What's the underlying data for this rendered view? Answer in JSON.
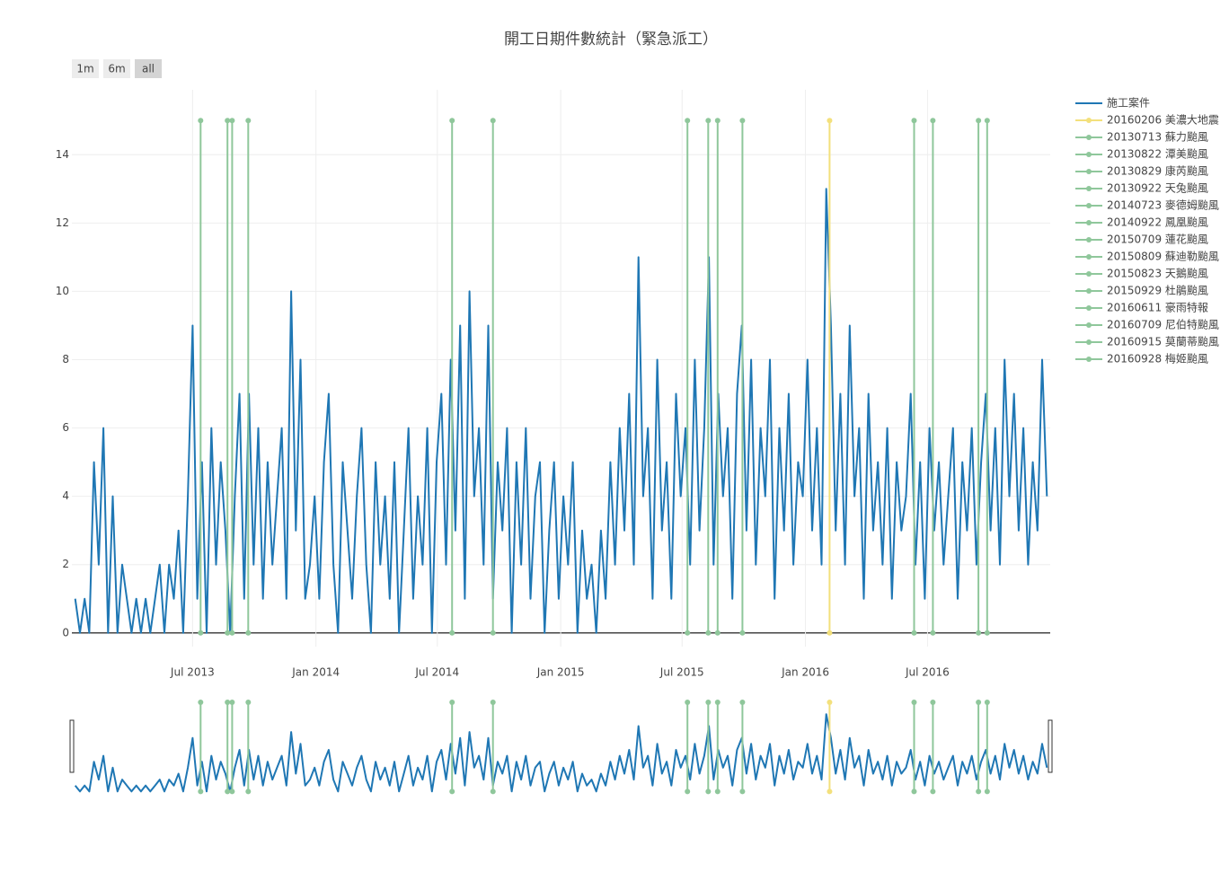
{
  "chart_data": {
    "type": "line",
    "title": "開工日期件數統計（緊急派工）",
    "range_buttons": [
      "1m",
      "6m",
      "all"
    ],
    "active_button": "all",
    "range_slider": true,
    "grid": true,
    "xlim": [
      "2013-01-02",
      "2016-12-31"
    ],
    "xticks": [
      {
        "value": "2013-07-01",
        "label": "Jul 2013"
      },
      {
        "value": "2014-01-01",
        "label": "Jan 2014"
      },
      {
        "value": "2014-07-01",
        "label": "Jul 2014"
      },
      {
        "value": "2015-01-01",
        "label": "Jan 2015"
      },
      {
        "value": "2015-07-01",
        "label": "Jul 2015"
      },
      {
        "value": "2016-01-01",
        "label": "Jan 2016"
      },
      {
        "value": "2016-07-01",
        "label": "Jul 2016"
      }
    ],
    "ylim": [
      -0.4,
      15.9
    ],
    "yticks": [
      0,
      2,
      4,
      6,
      8,
      10,
      12,
      14
    ],
    "series": [
      {
        "name": "施工案件",
        "color": "#1f77b4",
        "markers": false,
        "x": [
          "2013-01-07",
          "2013-01-14",
          "2013-01-21",
          "2013-01-28",
          "2013-02-04",
          "2013-02-11",
          "2013-02-18",
          "2013-02-25",
          "2013-03-04",
          "2013-03-11",
          "2013-03-18",
          "2013-03-25",
          "2013-04-01",
          "2013-04-08",
          "2013-04-15",
          "2013-04-22",
          "2013-04-29",
          "2013-05-06",
          "2013-05-13",
          "2013-05-20",
          "2013-05-27",
          "2013-06-03",
          "2013-06-10",
          "2013-06-17",
          "2013-06-24",
          "2013-07-01",
          "2013-07-08",
          "2013-07-15",
          "2013-07-22",
          "2013-07-29",
          "2013-08-05",
          "2013-08-12",
          "2013-08-19",
          "2013-08-26",
          "2013-09-02",
          "2013-09-09",
          "2013-09-16",
          "2013-09-23",
          "2013-09-30",
          "2013-10-07",
          "2013-10-14",
          "2013-10-21",
          "2013-10-28",
          "2013-11-04",
          "2013-11-11",
          "2013-11-18",
          "2013-11-25",
          "2013-12-02",
          "2013-12-09",
          "2013-12-16",
          "2013-12-23",
          "2013-12-30",
          "2014-01-06",
          "2014-01-13",
          "2014-01-20",
          "2014-01-27",
          "2014-02-03",
          "2014-02-10",
          "2014-02-17",
          "2014-02-24",
          "2014-03-03",
          "2014-03-10",
          "2014-03-17",
          "2014-03-24",
          "2014-03-31",
          "2014-04-07",
          "2014-04-14",
          "2014-04-21",
          "2014-04-28",
          "2014-05-05",
          "2014-05-12",
          "2014-05-19",
          "2014-05-26",
          "2014-06-02",
          "2014-06-09",
          "2014-06-16",
          "2014-06-23",
          "2014-06-30",
          "2014-07-07",
          "2014-07-14",
          "2014-07-21",
          "2014-07-28",
          "2014-08-04",
          "2014-08-11",
          "2014-08-18",
          "2014-08-25",
          "2014-09-01",
          "2014-09-08",
          "2014-09-15",
          "2014-09-22",
          "2014-09-29",
          "2014-10-06",
          "2014-10-13",
          "2014-10-20",
          "2014-10-27",
          "2014-11-03",
          "2014-11-10",
          "2014-11-17",
          "2014-11-24",
          "2014-12-01",
          "2014-12-08",
          "2014-12-15",
          "2014-12-22",
          "2014-12-29",
          "2015-01-05",
          "2015-01-12",
          "2015-01-19",
          "2015-01-26",
          "2015-02-02",
          "2015-02-09",
          "2015-02-16",
          "2015-02-23",
          "2015-03-02",
          "2015-03-09",
          "2015-03-16",
          "2015-03-23",
          "2015-03-30",
          "2015-04-06",
          "2015-04-13",
          "2015-04-20",
          "2015-04-27",
          "2015-05-04",
          "2015-05-11",
          "2015-05-18",
          "2015-05-25",
          "2015-06-01",
          "2015-06-08",
          "2015-06-15",
          "2015-06-22",
          "2015-06-29",
          "2015-07-06",
          "2015-07-13",
          "2015-07-20",
          "2015-07-27",
          "2015-08-03",
          "2015-08-10",
          "2015-08-17",
          "2015-08-24",
          "2015-08-31",
          "2015-09-07",
          "2015-09-14",
          "2015-09-21",
          "2015-09-28",
          "2015-10-05",
          "2015-10-12",
          "2015-10-19",
          "2015-10-26",
          "2015-11-02",
          "2015-11-09",
          "2015-11-16",
          "2015-11-23",
          "2015-11-30",
          "2015-12-07",
          "2015-12-14",
          "2015-12-21",
          "2015-12-28",
          "2016-01-04",
          "2016-01-11",
          "2016-01-18",
          "2016-01-25",
          "2016-02-01",
          "2016-02-08",
          "2016-02-15",
          "2016-02-22",
          "2016-02-29",
          "2016-03-07",
          "2016-03-14",
          "2016-03-21",
          "2016-03-28",
          "2016-04-04",
          "2016-04-11",
          "2016-04-18",
          "2016-04-25",
          "2016-05-02",
          "2016-05-09",
          "2016-05-16",
          "2016-05-23",
          "2016-05-30",
          "2016-06-06",
          "2016-06-13",
          "2016-06-20",
          "2016-06-27",
          "2016-07-04",
          "2016-07-11",
          "2016-07-18",
          "2016-07-25",
          "2016-08-01",
          "2016-08-08",
          "2016-08-15",
          "2016-08-22",
          "2016-08-29",
          "2016-09-05",
          "2016-09-12",
          "2016-09-19",
          "2016-09-26",
          "2016-10-03",
          "2016-10-10",
          "2016-10-17",
          "2016-10-24",
          "2016-10-31",
          "2016-11-07",
          "2016-11-14",
          "2016-11-21",
          "2016-11-28",
          "2016-12-05",
          "2016-12-12",
          "2016-12-19",
          "2016-12-26"
        ],
        "values": [
          1,
          0,
          1,
          0,
          5,
          2,
          6,
          0,
          4,
          0,
          2,
          1,
          0,
          1,
          0,
          1,
          0,
          1,
          2,
          0,
          2,
          1,
          3,
          0,
          4,
          9,
          1,
          5,
          0,
          6,
          2,
          5,
          3,
          0,
          4,
          7,
          1,
          7,
          2,
          6,
          1,
          5,
          2,
          4,
          6,
          1,
          10,
          3,
          8,
          1,
          2,
          4,
          1,
          5,
          7,
          2,
          0,
          5,
          3,
          1,
          4,
          6,
          2,
          0,
          5,
          2,
          4,
          1,
          5,
          0,
          3,
          6,
          1,
          4,
          2,
          6,
          0,
          5,
          7,
          2,
          8,
          3,
          9,
          1,
          10,
          4,
          6,
          2,
          9,
          1,
          5,
          3,
          6,
          0,
          5,
          2,
          6,
          1,
          4,
          5,
          0,
          3,
          5,
          1,
          4,
          2,
          5,
          0,
          3,
          1,
          2,
          0,
          3,
          1,
          5,
          2,
          6,
          3,
          7,
          2,
          11,
          4,
          6,
          1,
          8,
          3,
          5,
          1,
          7,
          4,
          6,
          2,
          8,
          3,
          6,
          11,
          2,
          7,
          4,
          6,
          1,
          7,
          9,
          3,
          8,
          2,
          6,
          4,
          8,
          1,
          6,
          3,
          7,
          2,
          5,
          4,
          8,
          3,
          6,
          2,
          13,
          9,
          3,
          7,
          2,
          9,
          4,
          6,
          1,
          7,
          3,
          5,
          2,
          6,
          1,
          5,
          3,
          4,
          7,
          2,
          5,
          1,
          6,
          3,
          5,
          2,
          4,
          6,
          1,
          5,
          3,
          6,
          2,
          5,
          7,
          3,
          6,
          2,
          8,
          4,
          7,
          3,
          6,
          2,
          5,
          3,
          8,
          4
        ]
      },
      {
        "name": "20160206 美濃大地震",
        "color": "#f3e07c",
        "markers": true,
        "x": [
          "2016-02-06",
          "2016-02-06"
        ],
        "values": [
          0,
          15
        ]
      },
      {
        "name": "20130713 蘇力颱風",
        "color": "#8fc79b",
        "markers": true,
        "x": [
          "2013-07-13",
          "2013-07-13"
        ],
        "values": [
          0,
          15
        ]
      },
      {
        "name": "20130822 潭美颱風",
        "color": "#8fc79b",
        "markers": true,
        "x": [
          "2013-08-22",
          "2013-08-22"
        ],
        "values": [
          0,
          15
        ]
      },
      {
        "name": "20130829 康芮颱風",
        "color": "#8fc79b",
        "markers": true,
        "x": [
          "2013-08-29",
          "2013-08-29"
        ],
        "values": [
          0,
          15
        ]
      },
      {
        "name": "20130922 天兔颱風",
        "color": "#8fc79b",
        "markers": true,
        "x": [
          "2013-09-22",
          "2013-09-22"
        ],
        "values": [
          0,
          15
        ]
      },
      {
        "name": "20140723 麥德姆颱風",
        "color": "#8fc79b",
        "markers": true,
        "x": [
          "2014-07-23",
          "2014-07-23"
        ],
        "values": [
          0,
          15
        ]
      },
      {
        "name": "20140922 鳳凰颱風",
        "color": "#8fc79b",
        "markers": true,
        "x": [
          "2014-09-22",
          "2014-09-22"
        ],
        "values": [
          0,
          15
        ]
      },
      {
        "name": "20150709 蓮花颱風",
        "color": "#8fc79b",
        "markers": true,
        "x": [
          "2015-07-09",
          "2015-07-09"
        ],
        "values": [
          0,
          15
        ]
      },
      {
        "name": "20150809 蘇迪勒颱風",
        "color": "#8fc79b",
        "markers": true,
        "x": [
          "2015-08-09",
          "2015-08-09"
        ],
        "values": [
          0,
          15
        ]
      },
      {
        "name": "20150823 天鵝颱風",
        "color": "#8fc79b",
        "markers": true,
        "x": [
          "2015-08-23",
          "2015-08-23"
        ],
        "values": [
          0,
          15
        ]
      },
      {
        "name": "20150929 杜鵑颱風",
        "color": "#8fc79b",
        "markers": true,
        "x": [
          "2015-09-29",
          "2015-09-29"
        ],
        "values": [
          0,
          15
        ]
      },
      {
        "name": "20160611 豪雨特報",
        "color": "#8fc79b",
        "markers": true,
        "x": [
          "2016-06-11",
          "2016-06-11"
        ],
        "values": [
          0,
          15
        ]
      },
      {
        "name": "20160709 尼伯特颱風",
        "color": "#8fc79b",
        "markers": true,
        "x": [
          "2016-07-09",
          "2016-07-09"
        ],
        "values": [
          0,
          15
        ]
      },
      {
        "name": "20160915 莫蘭蒂颱風",
        "color": "#8fc79b",
        "markers": true,
        "x": [
          "2016-09-15",
          "2016-09-15"
        ],
        "values": [
          0,
          15
        ]
      },
      {
        "name": "20160928 梅姬颱風",
        "color": "#8fc79b",
        "markers": true,
        "x": [
          "2016-09-28",
          "2016-09-28"
        ],
        "values": [
          0,
          15
        ]
      }
    ]
  }
}
